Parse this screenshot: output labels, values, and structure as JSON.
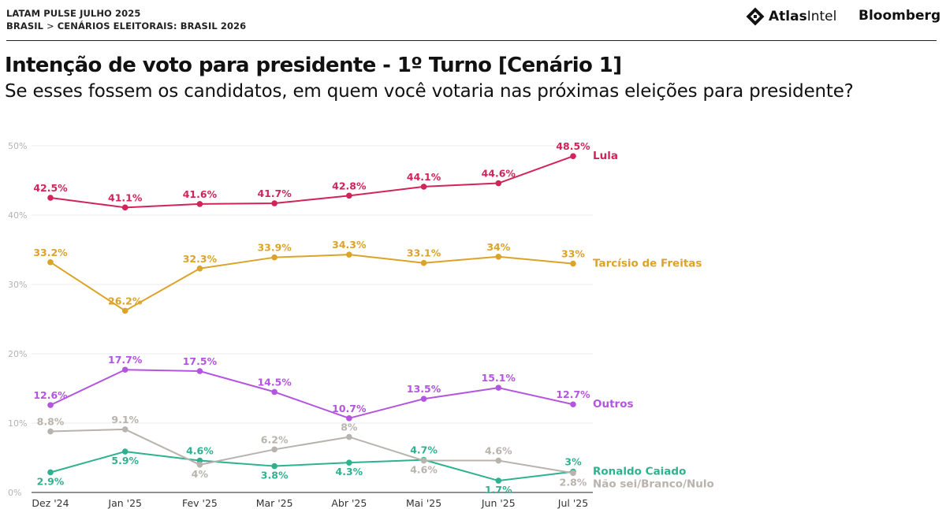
{
  "header": {
    "line1": "LATAM PULSE JULHO 2025",
    "crumb_country": "BRASIL",
    "crumb_sep": ">",
    "crumb_section": "CENÁRIOS ELEITORAIS: BRASIL 2026"
  },
  "brands": {
    "atlas_bold": "Atlas",
    "atlas_regular": "Intel",
    "bloomberg": "Bloomberg"
  },
  "chart_data": {
    "type": "line",
    "title": "Intenção de voto para presidente - 1º Turno [Cenário 1]",
    "subtitle": "Se esses fossem os candidatos, em quem você votaria nas próximas eleições para presidente?",
    "categories": [
      "Dez '24",
      "Jan '25",
      "Fev '25",
      "Mar '25",
      "Abr '25",
      "Mai '25",
      "Jun '25",
      "Jul '25"
    ],
    "ylim": [
      0,
      50
    ],
    "yticks": [
      0,
      10,
      20,
      30,
      40,
      50
    ],
    "ytick_labels": [
      "0%",
      "10%",
      "20%",
      "30%",
      "40%",
      "50%"
    ],
    "grid": true,
    "series": [
      {
        "name": "Lula",
        "color": "#d1245a",
        "values": [
          42.5,
          41.1,
          41.6,
          41.7,
          42.8,
          44.1,
          44.6,
          48.5
        ],
        "labels": [
          "42.5%",
          "41.1%",
          "41.6%",
          "41.7%",
          "42.8%",
          "44.1%",
          "44.6%",
          "48.5%"
        ],
        "label_pos": [
          "above",
          "above",
          "above",
          "above",
          "above",
          "above",
          "above",
          "above"
        ]
      },
      {
        "name": "Tarcísio de Freitas",
        "color": "#dba327",
        "values": [
          33.2,
          26.2,
          32.3,
          33.9,
          34.3,
          33.1,
          34,
          33
        ],
        "labels": [
          "33.2%",
          "26.2%",
          "32.3%",
          "33.9%",
          "34.3%",
          "33.1%",
          "34%",
          "33%"
        ],
        "label_pos": [
          "above",
          "above",
          "above",
          "above",
          "above",
          "above",
          "above",
          "above"
        ]
      },
      {
        "name": "Outros",
        "color": "#b455e0",
        "values": [
          12.6,
          17.7,
          17.5,
          14.5,
          10.7,
          13.5,
          15.1,
          12.7
        ],
        "labels": [
          "12.6%",
          "17.7%",
          "17.5%",
          "14.5%",
          "10.7%",
          "13.5%",
          "15.1%",
          "12.7%"
        ],
        "label_pos": [
          "above",
          "above",
          "above",
          "above",
          "above",
          "above",
          "above",
          "above"
        ]
      },
      {
        "name": "Ronaldo Caiado",
        "color": "#2fb18f",
        "values": [
          2.9,
          5.9,
          4.6,
          3.8,
          4.3,
          4.7,
          1.7,
          3
        ],
        "labels": [
          "2.9%",
          "5.9%",
          "4.6%",
          "3.8%",
          "4.3%",
          "4.7%",
          "1.7%",
          "3%"
        ],
        "label_pos": [
          "below",
          "below",
          "above",
          "below",
          "below",
          "above",
          "below",
          "above"
        ]
      },
      {
        "name": "Não sei/Branco/Nulo",
        "color": "#b8b3ad",
        "values": [
          8.8,
          9.1,
          4,
          6.2,
          8,
          4.6,
          4.6,
          2.8
        ],
        "labels": [
          "8.8%",
          "9.1%",
          "4%",
          "6.2%",
          "8%",
          "4.6%",
          "4.6%",
          "2.8%"
        ],
        "label_pos": [
          "above",
          "above",
          "below",
          "above",
          "above",
          "below",
          "above",
          "below"
        ]
      }
    ]
  }
}
